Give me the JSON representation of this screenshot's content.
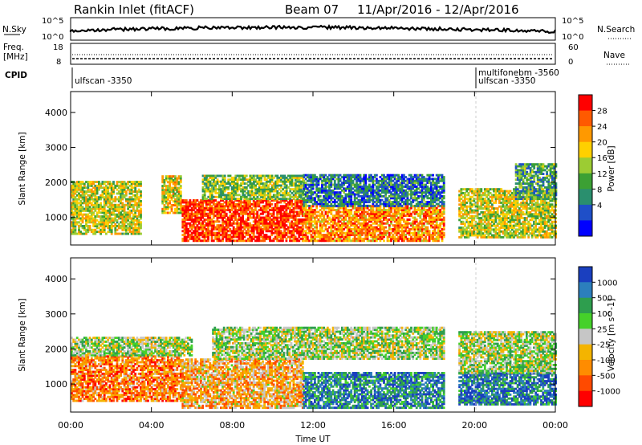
{
  "header": {
    "station_title": "Rankin Inlet (fitACF)",
    "beam": "Beam 07",
    "date_range": "11/Apr/2016 - 12/Apr/2016"
  },
  "panels": {
    "nsky_label": "N.Sky",
    "nsearch_label": "N.Search",
    "nsky_ticks": [
      "10^5",
      "10^0"
    ],
    "nsearch_ticks": [
      "10^5",
      "10^0"
    ],
    "freq_label": [
      "Freq.",
      "[MHz]"
    ],
    "freq_ticks": [
      "18",
      "8"
    ],
    "nave_label": "Nave",
    "nave_ticks": [
      "60",
      "0"
    ],
    "cpid_label": "CPID",
    "cpid_entries": [
      "ulfscan -3350",
      "multifonebm -3560",
      "ulfscan -3350"
    ]
  },
  "colorbars": {
    "power": {
      "label": "Power [dB]",
      "ticks": [
        "28",
        "24",
        "20",
        "16",
        "12",
        "8",
        "4"
      ],
      "colors": [
        "#ff0000",
        "#ff5a00",
        "#ff9900",
        "#ffd000",
        "#9ccc33",
        "#3ca034",
        "#2a8f6e",
        "#1f4fc8",
        "#0000ff"
      ]
    },
    "velocity": {
      "label": "Velocity [m s^-1]",
      "ticks": [
        "1000",
        "500",
        "100",
        "25",
        "-25",
        "-100",
        "-500",
        "-1000"
      ],
      "colors": [
        "#1a3fbf",
        "#2c7fbd",
        "#2e9e4e",
        "#45d12a",
        "#c6c6c6",
        "#f4b400",
        "#ff8c00",
        "#ff4a00",
        "#ff0000"
      ]
    }
  },
  "chart_data": [
    {
      "type": "heatmap",
      "parameter": "power",
      "ylabel": "Slant Range [km]",
      "xlabel": "Time UT",
      "x_ticks": [
        "00:00",
        "04:00",
        "08:00",
        "12:00",
        "16:00",
        "20:00",
        "00:00"
      ],
      "y_ticks": [
        1000,
        2000,
        3000,
        4000
      ],
      "ylim": [
        200,
        4600
      ],
      "xlim_hours": [
        0,
        24
      ],
      "bands": [
        {
          "start": 0,
          "end": 3.5,
          "low": 500,
          "high": 2000,
          "level": 0.55
        },
        {
          "start": 4.5,
          "end": 5.4,
          "low": 1100,
          "high": 2200,
          "level": 0.6
        },
        {
          "start": 5.5,
          "end": 11.5,
          "low": 300,
          "high": 1500,
          "level": 0.9
        },
        {
          "start": 6.5,
          "end": 11.5,
          "low": 1500,
          "high": 2200,
          "level": 0.45
        },
        {
          "start": 11.5,
          "end": 18.5,
          "low": 300,
          "high": 1300,
          "level": 0.75
        },
        {
          "start": 11.5,
          "end": 18.5,
          "low": 1300,
          "high": 2200,
          "level": 0.25
        },
        {
          "start": 19.2,
          "end": 24,
          "low": 400,
          "high": 1800,
          "level": 0.55
        },
        {
          "start": 22,
          "end": 24,
          "low": 1500,
          "high": 2500,
          "level": 0.35
        }
      ]
    },
    {
      "type": "heatmap",
      "parameter": "velocity",
      "ylabel": "Slant Range [km]",
      "xlabel": "Time UT",
      "x_ticks": [
        "00:00",
        "04:00",
        "08:00",
        "12:00",
        "16:00",
        "20:00",
        "00:00"
      ],
      "y_ticks": [
        1000,
        2000,
        3000,
        4000
      ],
      "ylim": [
        200,
        4600
      ],
      "xlim_hours": [
        0,
        24
      ],
      "bands": [
        {
          "start": 0,
          "end": 5.5,
          "low": 500,
          "high": 1800,
          "level": 0.75
        },
        {
          "start": 0,
          "end": 6,
          "low": 1800,
          "high": 2300,
          "level": 0.45
        },
        {
          "start": 5.5,
          "end": 11.5,
          "low": 300,
          "high": 1700,
          "level": 0.65
        },
        {
          "start": 7,
          "end": 18.5,
          "low": 1700,
          "high": 2600,
          "level": 0.45
        },
        {
          "start": 11.5,
          "end": 18.5,
          "low": 300,
          "high": 1300,
          "level": 0.2
        },
        {
          "start": 19.2,
          "end": 24,
          "low": 400,
          "high": 1300,
          "level": 0.15
        },
        {
          "start": 19.2,
          "end": 24,
          "low": 1300,
          "high": 2500,
          "level": 0.45
        }
      ]
    }
  ]
}
